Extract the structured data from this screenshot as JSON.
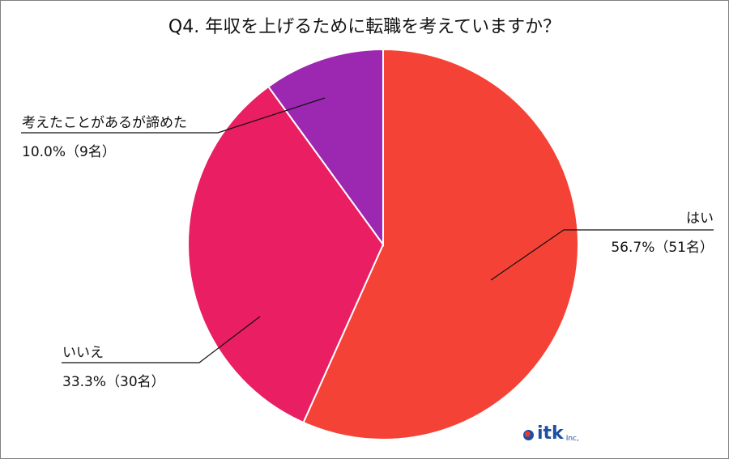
{
  "chart_data": {
    "type": "pie",
    "title": "Q4. 年収を上げるために転職を考えていますか？",
    "start_angle": "top, clockwise",
    "slices": [
      {
        "label": "はい",
        "value": 56.7,
        "count_label": "56.7%（51名）",
        "color": "#F44336"
      },
      {
        "label": "いいえ",
        "value": 33.3,
        "count_label": "33.3%（30名）",
        "color": "#E91E63"
      },
      {
        "label": "考えたことがあるが諦めた",
        "value": 10.0,
        "count_label": "10.0%（9名）",
        "color": "#9C27B0"
      }
    ],
    "legend": "none"
  },
  "logo": {
    "text": "itk",
    "suffix": "Inc,"
  }
}
